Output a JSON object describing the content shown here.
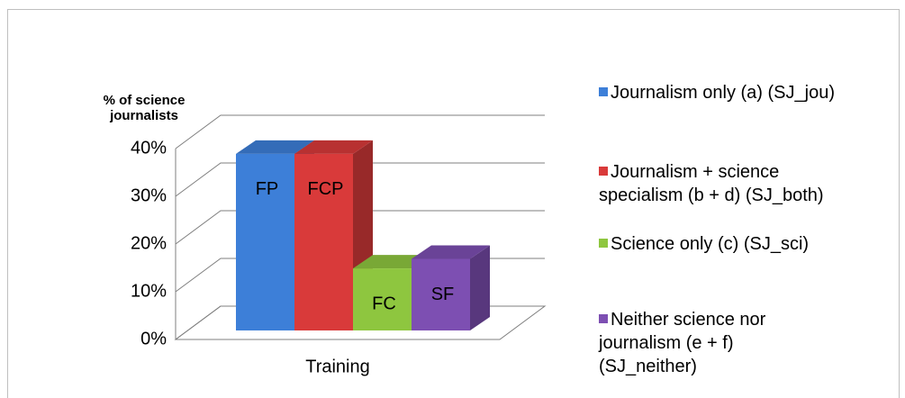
{
  "chart_data": {
    "type": "bar3d",
    "y_axis_label": "% of science journalists",
    "categories": [
      "Training"
    ],
    "series": [
      {
        "name": "Journalism only (a) (SJ_jou)",
        "label": "FP",
        "color": "#3d7fd8",
        "values": [
          37
        ]
      },
      {
        "name": "Journalism + science specialism (b + d) (SJ_both)",
        "label": "FCP",
        "color": "#d93a3a",
        "values": [
          37
        ]
      },
      {
        "name": "Science only (c) (SJ_sci)",
        "label": "FC",
        "color": "#8ec63f",
        "values": [
          13
        ]
      },
      {
        "name": "Neither science nor journalism (e + f) (SJ_neither)",
        "label": "SF",
        "color": "#7d4fb2",
        "values": [
          15
        ]
      }
    ],
    "ylim": [
      0,
      40
    ],
    "yticks": [
      {
        "value": 0,
        "label": "0%"
      },
      {
        "value": 10,
        "label": "10%"
      },
      {
        "value": 20,
        "label": "20%"
      },
      {
        "value": 30,
        "label": "30%"
      },
      {
        "value": 40,
        "label": "40%"
      }
    ],
    "grid": true
  }
}
